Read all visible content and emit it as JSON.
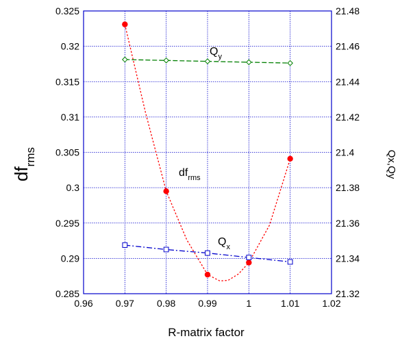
{
  "chart_data": {
    "type": "line",
    "xlabel": "R-matrix factor",
    "ylabel_left": {
      "main": "df",
      "sub": "rms"
    },
    "ylabel_right": "Qx,Qy",
    "xlim": [
      0.96,
      1.02
    ],
    "xticks": [
      "0.96",
      "0.97",
      "0.98",
      "0.99",
      "1",
      "1.01",
      "1.02"
    ],
    "ylim_left": [
      0.285,
      0.325
    ],
    "yticks_left": [
      "0.285",
      "0.29",
      "0.295",
      "0.3",
      "0.305",
      "0.31",
      "0.315",
      "0.32",
      "0.325"
    ],
    "ylim_right": [
      21.32,
      21.48
    ],
    "yticks_right": [
      "21.32",
      "21.34",
      "21.36",
      "21.38",
      "21.4",
      "21.42",
      "21.44",
      "21.46",
      "21.48"
    ],
    "grid": true,
    "colors": {
      "frame": "#0000cc",
      "grid": "#0000cc",
      "df": "#ff0000",
      "qx": "#0000cc",
      "qy": "#007f00"
    },
    "series": [
      {
        "name": "df",
        "subscript": "rms",
        "axis": "left",
        "marker": "filled-circle",
        "x": [
          0.97,
          0.98,
          0.99,
          1.0,
          1.01
        ],
        "y": [
          0.3231,
          0.2995,
          0.2877,
          0.2894,
          0.3041
        ],
        "fit_x": [
          0.97,
          0.975,
          0.98,
          0.985,
          0.99,
          0.993,
          0.995,
          0.9975,
          1.0,
          1.005,
          1.01
        ],
        "fit_y": [
          0.3231,
          0.3106,
          0.2995,
          0.2926,
          0.2877,
          0.2868,
          0.2869,
          0.2878,
          0.2894,
          0.2947,
          0.3041
        ]
      },
      {
        "name": "Q",
        "subscript": "y",
        "axis": "right",
        "marker": "open-diamond",
        "x": [
          0.97,
          0.98,
          0.99,
          1.0,
          1.01
        ],
        "y": [
          21.4525,
          21.452,
          21.4515,
          21.451,
          21.4505
        ]
      },
      {
        "name": "Q",
        "subscript": "x",
        "axis": "right",
        "marker": "open-square",
        "x": [
          0.97,
          0.98,
          0.99,
          1.0,
          1.01
        ],
        "y": [
          21.3475,
          21.345,
          21.343,
          21.3405,
          21.338
        ]
      }
    ]
  }
}
